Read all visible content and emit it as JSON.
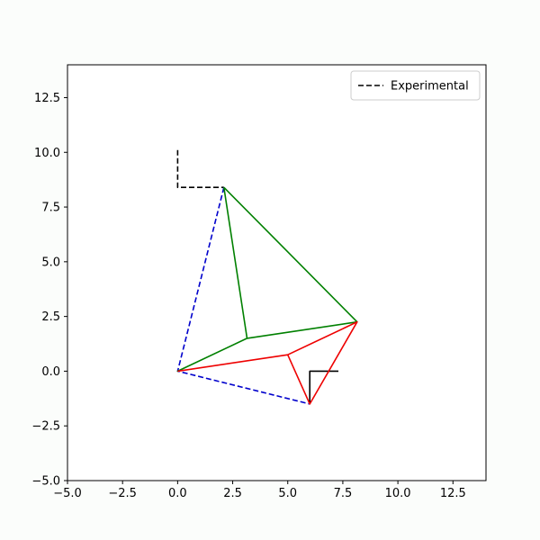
{
  "chart_data": {
    "type": "line",
    "title": "",
    "xlabel": "",
    "ylabel": "",
    "xlim": [
      -5,
      14
    ],
    "ylim": [
      -5,
      14
    ],
    "xticks": [
      -5.0,
      -2.5,
      0.0,
      2.5,
      5.0,
      7.5,
      10.0,
      12.5
    ],
    "yticks": [
      -5.0,
      -2.5,
      0.0,
      2.5,
      5.0,
      7.5,
      10.0,
      12.5
    ],
    "xtick_labels": [
      "−5.0",
      "−2.5",
      "0.0",
      "2.5",
      "5.0",
      "7.5",
      "10.0",
      "12.5"
    ],
    "ytick_labels": [
      "−5.0",
      "−2.5",
      "0.0",
      "2.5",
      "5.0",
      "7.5",
      "10.0",
      "12.5"
    ],
    "grid": false,
    "legend": {
      "position": "top-right",
      "entries": [
        "Experimental"
      ]
    },
    "series": [
      {
        "name": "Experimental",
        "color": "#000000",
        "dash": "dashed",
        "x": [
          0.0,
          0.0,
          2.1
        ],
        "y": [
          10.1,
          8.4,
          8.4
        ]
      },
      {
        "color": "#000000",
        "dash": "solid",
        "x": [
          7.3,
          6.0,
          6.0
        ],
        "y": [
          0.0,
          0.0,
          -1.5
        ]
      },
      {
        "color": "#0000cc",
        "dash": "dashed",
        "x": [
          2.1,
          0.0,
          6.0
        ],
        "y": [
          8.4,
          0.0,
          -1.5
        ]
      },
      {
        "color": "#008000",
        "dash": "solid",
        "x": [
          2.1,
          3.15,
          0.0,
          3.15,
          8.15,
          2.1
        ],
        "y": [
          8.4,
          1.5,
          0.0,
          1.5,
          2.25,
          8.4
        ]
      },
      {
        "color": "#ee0000",
        "dash": "solid",
        "x": [
          0.0,
          5.0,
          6.0,
          8.15,
          5.0
        ],
        "y": [
          0.0,
          0.75,
          -1.5,
          2.25,
          0.75
        ]
      }
    ]
  }
}
